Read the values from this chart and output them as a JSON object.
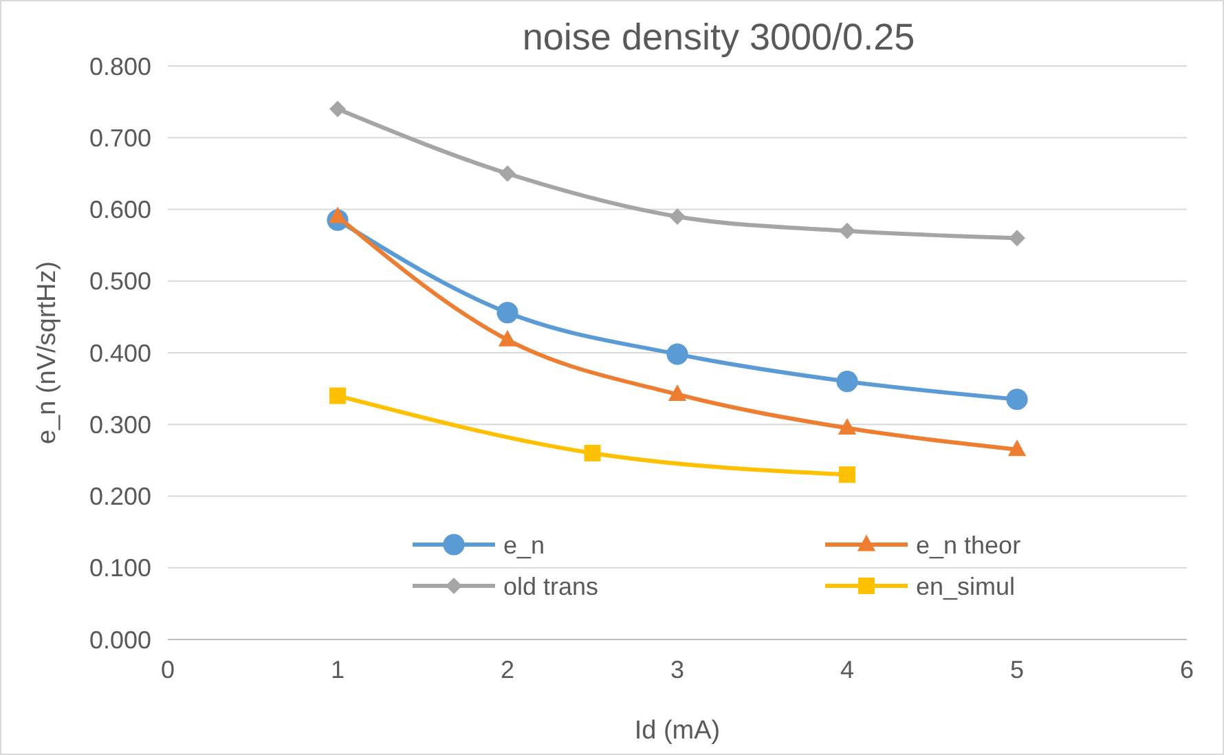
{
  "chart_data": {
    "type": "line",
    "title": "noise density  3000/0.25",
    "xlabel": "Id (mA)",
    "ylabel": "e_n (nV/sqrtHz)",
    "xlim": [
      0,
      6
    ],
    "xticks": [
      0,
      1,
      2,
      3,
      4,
      5,
      6
    ],
    "ylim": [
      0,
      0.8
    ],
    "yticks": [
      {
        "value": 0,
        "label": "0.000"
      },
      {
        "value": 0.1,
        "label": "0.100"
      },
      {
        "value": 0.2,
        "label": "0.200"
      },
      {
        "value": 0.3,
        "label": "0.300"
      },
      {
        "value": 0.4,
        "label": "0.400"
      },
      {
        "value": 0.5,
        "label": "0.500"
      },
      {
        "value": 0.6,
        "label": "0.600"
      },
      {
        "value": 0.7,
        "label": "0.700"
      },
      {
        "value": 0.8,
        "label": "0.800"
      }
    ],
    "grid": "y",
    "legend": "bottom",
    "series": [
      {
        "name": "e_n",
        "color": "#5b9bd5",
        "marker": "circle",
        "x": [
          1,
          2,
          3,
          4,
          5
        ],
        "values": [
          0.585,
          0.456,
          0.398,
          0.36,
          0.335
        ]
      },
      {
        "name": "e_n theor",
        "color": "#ed7d31",
        "marker": "triangle",
        "x": [
          1,
          2,
          3,
          4,
          5
        ],
        "values": [
          0.59,
          0.418,
          0.342,
          0.295,
          0.265
        ]
      },
      {
        "name": "old trans",
        "color": "#a5a5a5",
        "marker": "diamond",
        "x": [
          1,
          2,
          3,
          4,
          5
        ],
        "values": [
          0.74,
          0.65,
          0.59,
          0.57,
          0.56
        ]
      },
      {
        "name": "en_simul",
        "color": "#ffc000",
        "marker": "square",
        "x": [
          1,
          2.5,
          4
        ],
        "values": [
          0.34,
          0.26,
          0.23
        ]
      }
    ]
  }
}
